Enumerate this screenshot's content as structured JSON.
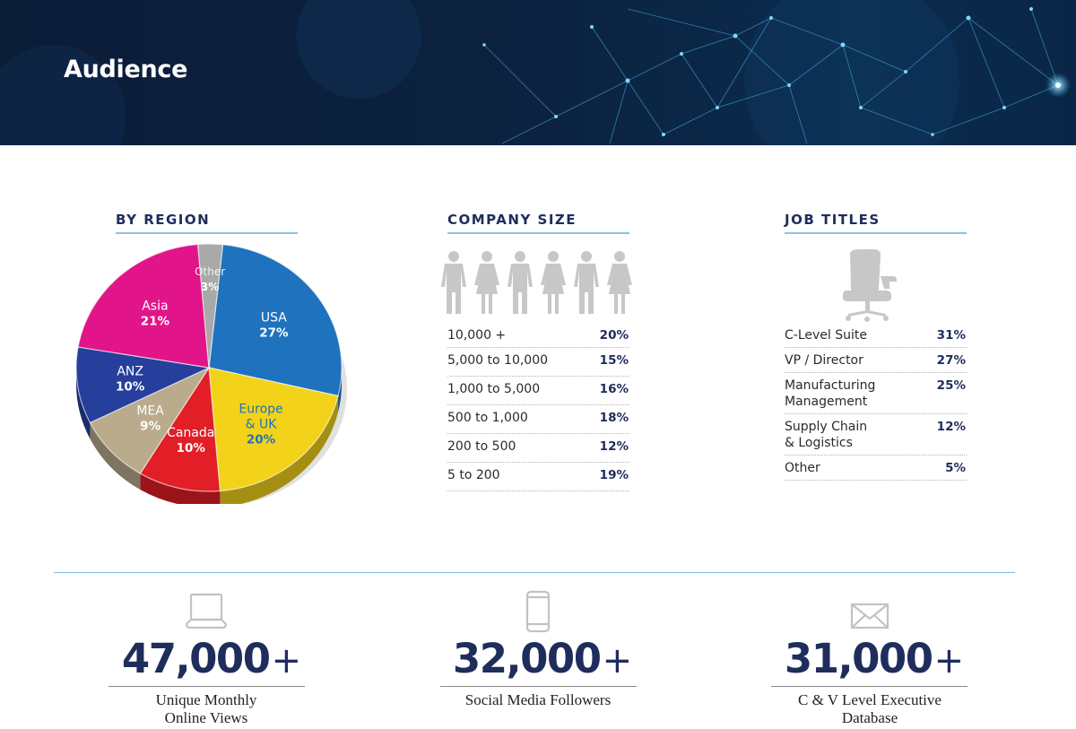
{
  "banner": {
    "title": "Audience"
  },
  "colors": {
    "navy": "#1e2d5c",
    "rule": "#8cc1e2",
    "icon_gray": "#c4c4c4"
  },
  "sections": {
    "region": {
      "title": "BY REGION"
    },
    "company": {
      "title": "COMPANY SIZE"
    },
    "jobs": {
      "title": "JOB TITLES"
    }
  },
  "chart_data": [
    {
      "type": "pie",
      "title": "BY REGION",
      "slices": [
        {
          "label": "USA",
          "value": 27,
          "value_label": "27%",
          "color": "#1f72bd"
        },
        {
          "label": "Europe\n& UK",
          "value": 20,
          "value_label": "20%",
          "color": "#f2d31a"
        },
        {
          "label": "Canada",
          "value": 10,
          "value_label": "10%",
          "color": "#e21e26"
        },
        {
          "label": "MEA",
          "value": 9,
          "value_label": "9%",
          "color": "#b9ab8c"
        },
        {
          "label": "ANZ",
          "value": 10,
          "value_label": "10%",
          "color": "#263f9c"
        },
        {
          "label": "Asia",
          "value": 21,
          "value_label": "21%",
          "color": "#e2148a"
        },
        {
          "label": "Other",
          "value": 3,
          "value_label": "3%",
          "color": "#a9a9a9"
        }
      ]
    },
    {
      "type": "table",
      "title": "COMPANY SIZE",
      "rows": [
        {
          "label": "10,000 +",
          "value": "20%"
        },
        {
          "label": "5,000 to 10,000",
          "value": "15%"
        },
        {
          "label": "1,000 to 5,000",
          "value": "16%"
        },
        {
          "label": "500 to 1,000",
          "value": "18%"
        },
        {
          "label": "200 to 500",
          "value": "12%"
        },
        {
          "label": "5 to 200",
          "value": "19%"
        }
      ]
    },
    {
      "type": "table",
      "title": "JOB TITLES",
      "rows": [
        {
          "label": "C-Level Suite",
          "value": "31%"
        },
        {
          "label": "VP / Director",
          "value": "27%"
        },
        {
          "label": "Manufacturing\nManagement",
          "value": "25%"
        },
        {
          "label": "Supply Chain\n& Logistics",
          "value": "12%"
        },
        {
          "label": "Other",
          "value": "5%"
        }
      ]
    }
  ],
  "metrics": [
    {
      "icon": "laptop-icon",
      "value": "47,000",
      "suffix": "+",
      "label": "Unique Monthly\nOnline Views"
    },
    {
      "icon": "phone-icon",
      "value": "32,000",
      "suffix": "+",
      "label": "Social Media Followers"
    },
    {
      "icon": "envelope-icon",
      "value": "31,000",
      "suffix": "+",
      "label": "C & V Level Executive\nDatabase"
    }
  ]
}
